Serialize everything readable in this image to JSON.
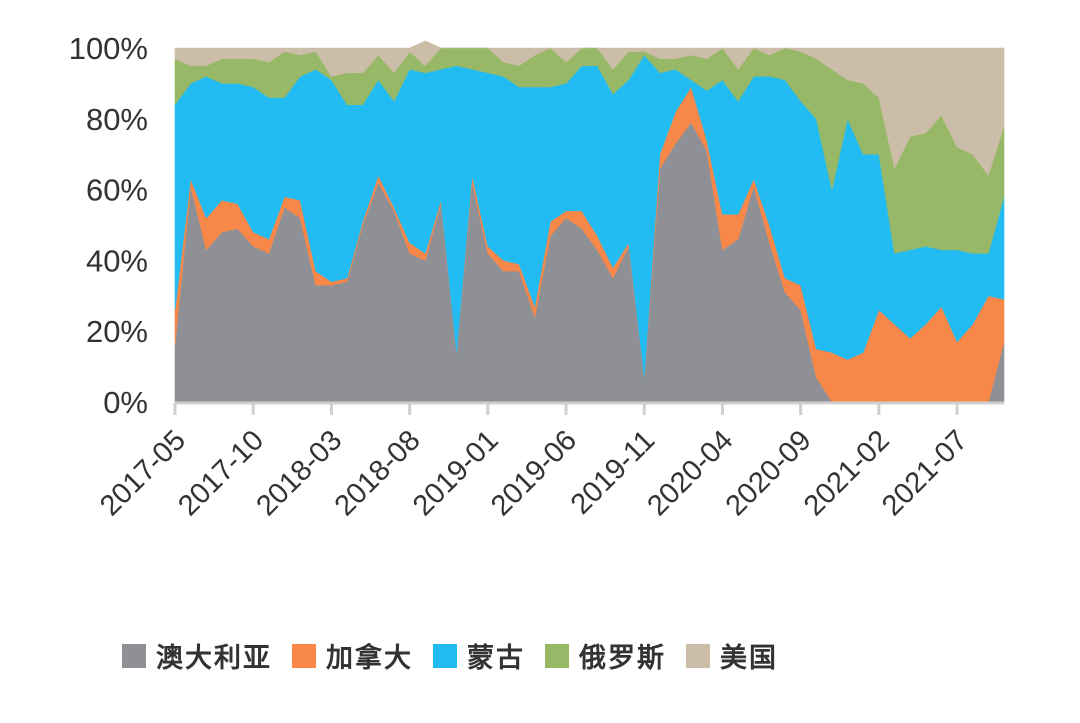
{
  "chart_data": {
    "type": "area",
    "stacked": true,
    "percent": true,
    "ylim": [
      0,
      100
    ],
    "y_ticks": [
      "0%",
      "20%",
      "40%",
      "60%",
      "80%",
      "100%"
    ],
    "x_tick_labels": [
      "2017-05",
      "2017-10",
      "2018-03",
      "2018-08",
      "2019-01",
      "2019-06",
      "2019-11",
      "2020-04",
      "2020-09",
      "2021-02",
      "2021-07"
    ],
    "x": [
      "2017-05",
      "2017-06",
      "2017-07",
      "2017-08",
      "2017-09",
      "2017-10",
      "2017-11",
      "2017-12",
      "2018-01",
      "2018-02",
      "2018-03",
      "2018-04",
      "2018-05",
      "2018-06",
      "2018-07",
      "2018-08",
      "2018-09",
      "2018-10",
      "2018-11",
      "2018-12",
      "2019-01",
      "2019-02",
      "2019-03",
      "2019-04",
      "2019-05",
      "2019-06",
      "2019-07",
      "2019-08",
      "2019-09",
      "2019-10",
      "2019-11",
      "2019-12",
      "2020-01",
      "2020-02",
      "2020-03",
      "2020-04",
      "2020-05",
      "2020-06",
      "2020-07",
      "2020-08",
      "2020-09",
      "2020-10",
      "2020-11",
      "2020-12",
      "2021-01",
      "2021-02",
      "2021-03",
      "2021-04",
      "2021-05",
      "2021-06",
      "2021-07",
      "2021-08",
      "2021-09",
      "2021-10"
    ],
    "series": [
      {
        "name": "澳大利亚",
        "color": "#8f9095",
        "values": [
          16,
          61,
          43,
          48,
          49,
          44,
          42,
          55,
          52,
          33,
          33,
          34,
          50,
          62,
          54,
          42,
          40,
          56,
          14,
          62,
          42,
          37,
          37,
          24,
          47,
          52,
          49,
          43,
          35,
          44,
          7,
          66,
          73,
          79,
          71,
          43,
          46,
          61,
          45,
          31,
          26,
          7,
          0,
          0,
          0,
          0,
          0,
          0,
          0,
          0,
          0,
          0,
          0,
          17
        ]
      },
      {
        "name": "加拿大",
        "color": "#f7884a",
        "values": [
          10,
          2,
          9,
          9,
          7,
          4,
          4,
          3,
          5,
          4,
          1,
          1,
          1,
          2,
          1,
          3,
          2,
          1,
          0,
          2,
          2,
          3,
          2,
          3,
          4,
          2,
          5,
          4,
          3,
          1,
          0,
          4,
          9,
          10,
          3,
          10,
          7,
          2,
          5,
          4,
          7,
          8,
          14,
          12,
          14,
          26,
          22,
          18,
          22,
          27,
          17,
          22,
          30,
          12
        ]
      },
      {
        "name": "蒙古",
        "color": "#22bcf2",
        "values": [
          58,
          27,
          40,
          33,
          34,
          41,
          40,
          28,
          35,
          57,
          57,
          49,
          33,
          27,
          30,
          49,
          51,
          37,
          81,
          30,
          49,
          52,
          50,
          62,
          38,
          36,
          41,
          48,
          49,
          46,
          91,
          23,
          12,
          2,
          14,
          38,
          32,
          29,
          42,
          56,
          52,
          65,
          46,
          68,
          56,
          44,
          20,
          25,
          22,
          16,
          26,
          20,
          12,
          29
        ]
      },
      {
        "name": "俄罗斯",
        "color": "#97b866",
        "values": [
          13,
          5,
          3,
          7,
          7,
          8,
          10,
          13,
          6,
          5,
          1,
          9,
          9,
          7,
          8,
          5,
          2,
          6,
          5,
          6,
          7,
          4,
          6,
          9,
          11,
          6,
          5,
          5,
          7,
          8,
          1,
          4,
          3,
          7,
          9,
          9,
          9,
          8,
          6,
          9,
          14,
          17,
          34,
          11,
          20,
          16,
          24,
          32,
          32,
          38,
          29,
          28,
          22,
          20
        ]
      },
      {
        "name": "美国",
        "color": "#cbbda8",
        "values": [
          3,
          5,
          5,
          3,
          3,
          3,
          4,
          1,
          2,
          1,
          8,
          7,
          7,
          2,
          7,
          1,
          7,
          0,
          0,
          0,
          0,
          4,
          5,
          2,
          0,
          4,
          0,
          0,
          6,
          1,
          1,
          3,
          3,
          2,
          3,
          0,
          6,
          0,
          2,
          0,
          1,
          3,
          6,
          9,
          10,
          14,
          34,
          25,
          24,
          19,
          28,
          30,
          36,
          22
        ]
      }
    ]
  }
}
